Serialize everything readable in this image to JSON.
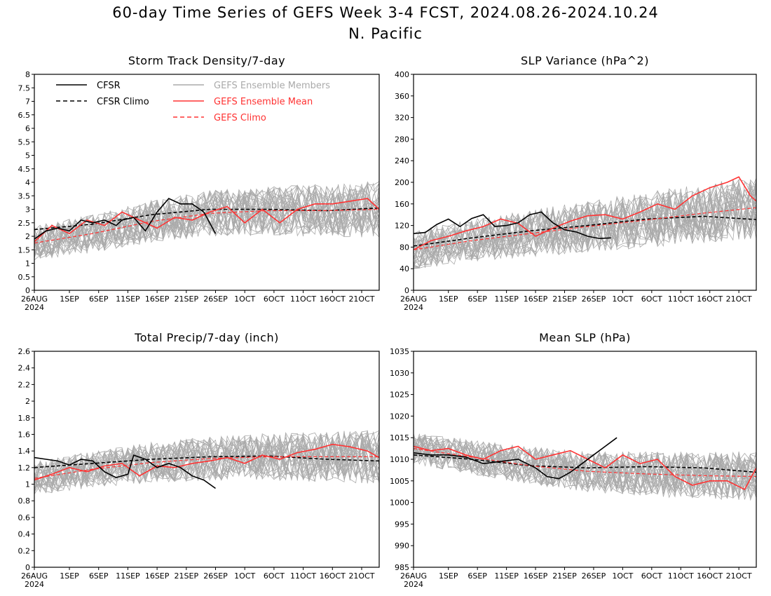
{
  "title": "60-day Time Series of GEFS Week 3-4 FCST, 2024.08.26-2024.10.24",
  "subtitle": "N. Pacific",
  "legend": {
    "cfsr": "CFSR",
    "cfsr_climo": "CFSR Climo",
    "members": "GEFS Ensemble Members",
    "ens_mean": "GEFS Ensemble Mean",
    "gefs_climo": "GEFS Climo"
  },
  "colors": {
    "cfsr": "#000000",
    "ens_mean": "#ff3333",
    "members": "#aaaaaa",
    "gefs_climo": "#ff3333"
  },
  "x_axis": {
    "ticks": [
      "26AUG",
      "1SEP",
      "6SEP",
      "11SEP",
      "16SEP",
      "21SEP",
      "26SEP",
      "1OCT",
      "6OCT",
      "11OCT",
      "16OCT",
      "21OCT"
    ],
    "tick_days": [
      0,
      6,
      11,
      16,
      21,
      26,
      31,
      36,
      41,
      46,
      51,
      56
    ],
    "year": "2024",
    "range_days": [
      0,
      59
    ]
  },
  "chart_data": [
    {
      "type": "line",
      "title": "Storm Track Density/7-day",
      "ylim": [
        0,
        8
      ],
      "yticks": [
        "0",
        "0.5",
        "1",
        "1.5",
        "2",
        "2.5",
        "3",
        "3.5",
        "4",
        "4.5",
        "5",
        "5.5",
        "6",
        "6.5",
        "7",
        "7.5",
        "8"
      ],
      "legend_placement": "top-left",
      "members_spread": 0.8,
      "series": [
        {
          "name": "CFSR",
          "x": [
            0,
            2,
            4,
            6,
            8,
            10,
            12,
            14,
            15,
            17,
            19,
            21,
            23,
            25,
            27,
            29,
            31
          ],
          "values": [
            1.9,
            2.2,
            2.3,
            2.2,
            2.6,
            2.5,
            2.6,
            2.4,
            2.6,
            2.7,
            2.2,
            2.9,
            3.4,
            3.2,
            3.2,
            2.9,
            2.1
          ]
        },
        {
          "name": "CFSR Climo",
          "x": [
            0,
            10,
            20,
            30,
            40,
            50,
            59
          ],
          "values": [
            2.25,
            2.45,
            2.8,
            3.0,
            3.0,
            2.95,
            3.05
          ]
        },
        {
          "name": "GEFS Ensemble Mean",
          "x": [
            0,
            3,
            6,
            9,
            12,
            15,
            18,
            21,
            24,
            27,
            30,
            33,
            36,
            39,
            42,
            45,
            48,
            51,
            54,
            57,
            59
          ],
          "values": [
            1.8,
            2.4,
            2.1,
            2.6,
            2.4,
            2.9,
            2.6,
            2.3,
            2.7,
            2.6,
            2.9,
            3.1,
            2.5,
            3.0,
            2.5,
            3.0,
            3.2,
            3.2,
            3.3,
            3.4,
            3.0
          ]
        },
        {
          "name": "GEFS Climo",
          "x": [
            0,
            10,
            20,
            30,
            40,
            50,
            59
          ],
          "values": [
            1.75,
            2.1,
            2.55,
            2.85,
            2.95,
            2.95,
            3.0
          ]
        }
      ]
    },
    {
      "type": "line",
      "title": "SLP Variance (hPa^2)",
      "ylim": [
        0,
        400
      ],
      "yticks": [
        "0",
        "40",
        "80",
        "120",
        "160",
        "200",
        "240",
        "280",
        "320",
        "360",
        "400"
      ],
      "members_spread": 45,
      "series": [
        {
          "name": "CFSR",
          "x": [
            0,
            2,
            4,
            6,
            8,
            10,
            12,
            14,
            16,
            18,
            20,
            22,
            24,
            26,
            28,
            30,
            32,
            34
          ],
          "values": [
            105,
            107,
            122,
            132,
            118,
            133,
            140,
            118,
            120,
            125,
            140,
            145,
            125,
            112,
            108,
            100,
            96,
            97
          ]
        },
        {
          "name": "CFSR Climo",
          "x": [
            0,
            10,
            20,
            30,
            40,
            50,
            59
          ],
          "values": [
            82,
            97,
            110,
            120,
            132,
            137,
            131
          ]
        },
        {
          "name": "GEFS Ensemble Mean",
          "x": [
            0,
            3,
            6,
            9,
            12,
            15,
            18,
            21,
            24,
            27,
            30,
            33,
            36,
            39,
            42,
            45,
            48,
            51,
            54,
            56,
            58,
            59
          ],
          "values": [
            75,
            92,
            100,
            110,
            118,
            132,
            124,
            100,
            115,
            128,
            138,
            140,
            132,
            145,
            160,
            150,
            175,
            190,
            200,
            210,
            175,
            165
          ]
        },
        {
          "name": "GEFS Climo",
          "x": [
            0,
            10,
            20,
            30,
            40,
            50,
            59
          ],
          "values": [
            75,
            92,
            105,
            118,
            130,
            143,
            153
          ]
        }
      ]
    },
    {
      "type": "line",
      "title": "Total Precip/7-day (inch)",
      "ylim": [
        0,
        2.6
      ],
      "yticks": [
        "0",
        "0.2",
        "0.4",
        "0.6",
        "0.8",
        "1",
        "1.2",
        "1.4",
        "1.6",
        "1.8",
        "2",
        "2.2",
        "2.4",
        "2.6"
      ],
      "members_spread": 0.25,
      "series": [
        {
          "name": "CFSR",
          "x": [
            0,
            2,
            4,
            6,
            8,
            10,
            12,
            14,
            16,
            17,
            19,
            21,
            23,
            25,
            27,
            29,
            31
          ],
          "values": [
            1.32,
            1.3,
            1.28,
            1.23,
            1.3,
            1.28,
            1.15,
            1.08,
            1.12,
            1.35,
            1.3,
            1.2,
            1.25,
            1.2,
            1.1,
            1.05,
            0.95
          ]
        },
        {
          "name": "CFSR Climo",
          "x": [
            0,
            10,
            20,
            30,
            40,
            50,
            59
          ],
          "values": [
            1.2,
            1.25,
            1.3,
            1.33,
            1.34,
            1.3,
            1.28
          ]
        },
        {
          "name": "GEFS Ensemble Mean",
          "x": [
            0,
            3,
            6,
            9,
            12,
            15,
            18,
            21,
            24,
            27,
            30,
            33,
            36,
            39,
            42,
            45,
            48,
            51,
            54,
            57,
            59
          ],
          "values": [
            1.05,
            1.12,
            1.2,
            1.15,
            1.22,
            1.25,
            1.1,
            1.22,
            1.2,
            1.25,
            1.28,
            1.32,
            1.25,
            1.35,
            1.3,
            1.38,
            1.42,
            1.48,
            1.45,
            1.4,
            1.32
          ]
        },
        {
          "name": "GEFS Climo",
          "x": [
            0,
            10,
            20,
            30,
            40,
            50,
            59
          ],
          "values": [
            1.07,
            1.18,
            1.26,
            1.31,
            1.33,
            1.33,
            1.33
          ]
        }
      ]
    },
    {
      "type": "line",
      "title": "Mean SLP (hPa)",
      "ylim": [
        985,
        1035
      ],
      "yticks": [
        "985",
        "990",
        "995",
        "1000",
        "1005",
        "1010",
        "1015",
        "1020",
        "1025",
        "1030",
        "1035"
      ],
      "members_spread": 4.5,
      "series": [
        {
          "name": "CFSR",
          "x": [
            0,
            3,
            6,
            9,
            12,
            15,
            18,
            21,
            23,
            25,
            27,
            29,
            31,
            33,
            35
          ],
          "values": [
            1011.5,
            1011,
            1011,
            1010.5,
            1009,
            1009.5,
            1010,
            1008,
            1006,
            1005.5,
            1007,
            1009,
            1011,
            1013,
            1015
          ]
        },
        {
          "name": "CFSR Climo",
          "x": [
            0,
            10,
            20,
            30,
            40,
            50,
            59
          ],
          "values": [
            1011,
            1010,
            1008.5,
            1008,
            1008.3,
            1008,
            1007
          ]
        },
        {
          "name": "GEFS Ensemble Mean",
          "x": [
            0,
            3,
            6,
            9,
            12,
            15,
            18,
            21,
            24,
            27,
            30,
            33,
            36,
            39,
            42,
            45,
            48,
            51,
            54,
            57,
            59
          ],
          "values": [
            1013,
            1012,
            1012.5,
            1011,
            1010,
            1012,
            1013,
            1010,
            1011,
            1012,
            1010,
            1008,
            1011,
            1009,
            1010,
            1006,
            1004,
            1005,
            1005,
            1003,
            1008
          ]
        },
        {
          "name": "GEFS Climo",
          "x": [
            0,
            10,
            20,
            30,
            40,
            50,
            59
          ],
          "values": [
            1012.5,
            1010.5,
            1008.5,
            1007.2,
            1006.6,
            1006.2,
            1006
          ]
        }
      ]
    }
  ]
}
